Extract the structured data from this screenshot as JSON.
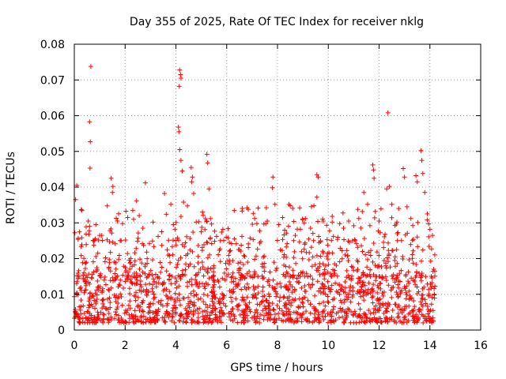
{
  "chart_data": {
    "type": "scatter",
    "title": "Day 355 of 2025, Rate Of TEC Index for receiver nklg",
    "xlabel": "GPS time / hours",
    "ylabel": "ROTI / TECUs",
    "xlim": [
      0,
      16
    ],
    "ylim": [
      0,
      0.08
    ],
    "xticks": [
      0,
      2,
      4,
      6,
      8,
      10,
      12,
      14,
      16
    ],
    "xtick_labels": [
      "0",
      "2",
      "4",
      "6",
      "8",
      "10",
      "12",
      "14",
      "16"
    ],
    "yticks": [
      0,
      0.01,
      0.02,
      0.03,
      0.04,
      0.05,
      0.06,
      0.07,
      0.08
    ],
    "ytick_labels": [
      "0",
      "0.01",
      "0.02",
      "0.03",
      "0.04",
      "0.05",
      "0.06",
      "0.07",
      "0.08"
    ],
    "grid": true,
    "marker": "+",
    "color": "#ff0000",
    "series": [
      {
        "name": "ROTI",
        "x_range": [
          0,
          14.2
        ],
        "typical_range": [
          0.002,
          0.015
        ],
        "points": [
          [
            0.65,
            0.0738
          ],
          [
            0.6,
            0.0583
          ],
          [
            0.63,
            0.0527
          ],
          [
            0.62,
            0.0453
          ],
          [
            0.1,
            0.0405
          ],
          [
            0.05,
            0.0365
          ],
          [
            0.3,
            0.0335
          ],
          [
            0.55,
            0.0305
          ],
          [
            0.85,
            0.0295
          ],
          [
            1.0,
            0.0265
          ],
          [
            1.45,
            0.0425
          ],
          [
            1.52,
            0.0402
          ],
          [
            1.5,
            0.0385
          ],
          [
            1.7,
            0.0305
          ],
          [
            1.9,
            0.0298
          ],
          [
            2.1,
            0.0315
          ],
          [
            2.3,
            0.0335
          ],
          [
            2.45,
            0.0362
          ],
          [
            2.8,
            0.0412
          ],
          [
            2.7,
            0.0285
          ],
          [
            3.1,
            0.0302
          ],
          [
            3.3,
            0.0262
          ],
          [
            3.55,
            0.0382
          ],
          [
            3.8,
            0.0352
          ],
          [
            3.9,
            0.0295
          ],
          [
            4.15,
            0.0728
          ],
          [
            4.18,
            0.0715
          ],
          [
            4.2,
            0.0705
          ],
          [
            4.13,
            0.0682
          ],
          [
            4.1,
            0.0568
          ],
          [
            4.12,
            0.0555
          ],
          [
            4.15,
            0.0505
          ],
          [
            4.2,
            0.0475
          ],
          [
            4.25,
            0.0445
          ],
          [
            4.3,
            0.0358
          ],
          [
            4.2,
            0.0318
          ],
          [
            4.6,
            0.0455
          ],
          [
            4.65,
            0.0428
          ],
          [
            4.62,
            0.0415
          ],
          [
            4.7,
            0.0382
          ],
          [
            4.8,
            0.0302
          ],
          [
            5.0,
            0.0275
          ],
          [
            5.22,
            0.0492
          ],
          [
            5.25,
            0.0468
          ],
          [
            5.3,
            0.0395
          ],
          [
            5.2,
            0.0305
          ],
          [
            5.6,
            0.0262
          ],
          [
            5.85,
            0.0282
          ],
          [
            6.1,
            0.0245
          ],
          [
            6.3,
            0.0255
          ],
          [
            6.6,
            0.0262
          ],
          [
            6.85,
            0.0338
          ],
          [
            6.8,
            0.0342
          ],
          [
            7.1,
            0.0312
          ],
          [
            7.3,
            0.0278
          ],
          [
            7.6,
            0.0305
          ],
          [
            7.82,
            0.0428
          ],
          [
            7.8,
            0.0398
          ],
          [
            7.9,
            0.0352
          ],
          [
            8.05,
            0.0295
          ],
          [
            8.2,
            0.0315
          ],
          [
            8.45,
            0.0352
          ],
          [
            8.5,
            0.0348
          ],
          [
            8.7,
            0.0265
          ],
          [
            8.9,
            0.0282
          ],
          [
            9.1,
            0.0312
          ],
          [
            9.3,
            0.0285
          ],
          [
            9.55,
            0.0435
          ],
          [
            9.6,
            0.0428
          ],
          [
            9.55,
            0.0372
          ],
          [
            9.8,
            0.0305
          ],
          [
            10.05,
            0.0278
          ],
          [
            10.2,
            0.0262
          ],
          [
            10.45,
            0.0298
          ],
          [
            10.6,
            0.0285
          ],
          [
            10.8,
            0.0305
          ],
          [
            11.0,
            0.0292
          ],
          [
            11.2,
            0.0312
          ],
          [
            11.4,
            0.0385
          ],
          [
            11.55,
            0.0352
          ],
          [
            11.75,
            0.0462
          ],
          [
            11.78,
            0.0448
          ],
          [
            11.8,
            0.0425
          ],
          [
            11.85,
            0.0332
          ],
          [
            12.0,
            0.0305
          ],
          [
            12.35,
            0.0608
          ],
          [
            12.4,
            0.0402
          ],
          [
            12.3,
            0.0395
          ],
          [
            12.5,
            0.0352
          ],
          [
            12.7,
            0.0302
          ],
          [
            12.95,
            0.0452
          ],
          [
            13.0,
            0.0428
          ],
          [
            13.1,
            0.0345
          ],
          [
            13.25,
            0.0312
          ],
          [
            13.45,
            0.0432
          ],
          [
            13.5,
            0.0415
          ],
          [
            13.65,
            0.0502
          ],
          [
            13.68,
            0.0475
          ],
          [
            13.72,
            0.0438
          ],
          [
            13.8,
            0.0385
          ],
          [
            13.9,
            0.0325
          ],
          [
            14.0,
            0.0282
          ],
          [
            14.1,
            0.0265
          ],
          [
            0.2,
            0.0275
          ],
          [
            0.02,
            0.0272
          ]
        ]
      }
    ]
  }
}
